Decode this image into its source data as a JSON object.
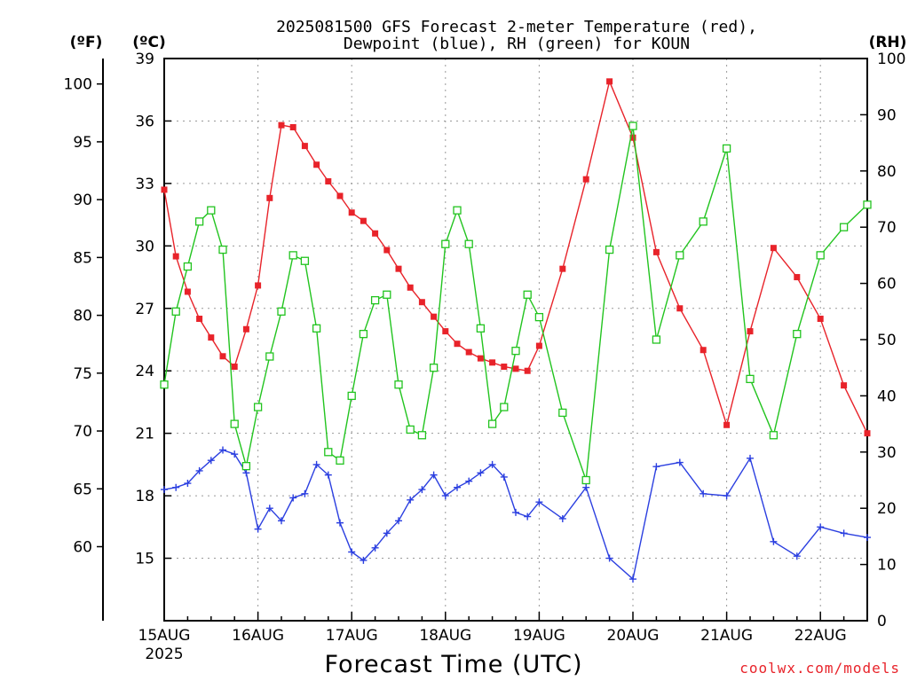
{
  "chart_data": {
    "type": "line",
    "title": "2025081500 GFS Forecast 2-meter Temperature (red),",
    "subtitle": "Dewpoint (blue), RH (green) for KOUN",
    "xlabel": "Forecast Time (UTC)",
    "unit_f": "(ºF)",
    "unit_c": "(ºC)",
    "unit_rh": "(RH)",
    "credit": "coolwx.com/models",
    "x_ticks": [
      "15AUG",
      "16AUG",
      "17AUG",
      "18AUG",
      "19AUG",
      "20AUG",
      "21AUG",
      "22AUG"
    ],
    "x_sub": "2025",
    "xlim_hours": [
      0,
      180
    ],
    "c_ticks": [
      15,
      18,
      21,
      24,
      27,
      30,
      33,
      36,
      39
    ],
    "f_ticks": [
      60,
      65,
      70,
      75,
      80,
      85,
      90,
      95,
      100
    ],
    "rh_ticks": [
      0,
      10,
      20,
      30,
      40,
      50,
      60,
      70,
      80,
      90,
      100
    ],
    "ylim_c": [
      12,
      39
    ],
    "ylim_rh": [
      0,
      100
    ],
    "grid": true,
    "series": [
      {
        "name": "Temperature",
        "axis": "c",
        "color": "#e8232a",
        "marker": "filled-square",
        "x": [
          0,
          3,
          6,
          9,
          12,
          15,
          18,
          21,
          24,
          27,
          30,
          33,
          36,
          39,
          42,
          45,
          48,
          51,
          54,
          57,
          60,
          63,
          66,
          69,
          72,
          75,
          78,
          81,
          84,
          87,
          90,
          93,
          96,
          102,
          108,
          114,
          120,
          126,
          132,
          138,
          144,
          150,
          156,
          162,
          168,
          174,
          180
        ],
        "y": [
          32.7,
          29.5,
          27.8,
          26.5,
          25.6,
          24.7,
          24.2,
          26.0,
          28.1,
          32.3,
          35.8,
          35.7,
          34.8,
          33.9,
          33.1,
          32.4,
          31.6,
          31.2,
          30.6,
          29.8,
          28.9,
          28.0,
          27.3,
          26.6,
          25.9,
          25.3,
          24.9,
          24.6,
          24.4,
          24.2,
          24.1,
          24.0,
          25.2,
          28.9,
          33.2,
          37.9,
          35.2,
          29.7,
          27.0,
          25.0,
          21.4,
          25.9,
          29.9,
          28.5,
          26.5,
          23.3,
          21.0
        ],
        "values_note": ""
      },
      {
        "name": "Dewpoint",
        "axis": "c",
        "color": "#2b3fe0",
        "marker": "plus",
        "x": [
          0,
          3,
          6,
          9,
          12,
          15,
          18,
          21,
          24,
          27,
          30,
          33,
          36,
          39,
          42,
          45,
          48,
          51,
          54,
          57,
          60,
          63,
          66,
          69,
          72,
          75,
          78,
          81,
          84,
          87,
          90,
          93,
          96,
          102,
          108,
          114,
          120,
          126,
          132,
          138,
          144,
          150,
          156,
          162,
          168,
          174,
          180
        ],
        "y": [
          18.3,
          18.4,
          18.6,
          19.2,
          19.7,
          20.2,
          20.0,
          19.1,
          16.4,
          17.4,
          16.8,
          17.9,
          18.1,
          19.5,
          19.0,
          16.7,
          15.3,
          14.9,
          15.5,
          16.2,
          16.8,
          17.8,
          18.3,
          19.0,
          18.0,
          18.4,
          18.7,
          19.1,
          19.5,
          18.9,
          17.2,
          17.0,
          17.7,
          16.9,
          18.4,
          15.0,
          14.0,
          19.4,
          19.6,
          18.1,
          18.0,
          19.8,
          15.8,
          15.1,
          16.5,
          16.2,
          16.0
        ],
        "values_note": ""
      },
      {
        "name": "RH",
        "axis": "rh",
        "color": "#22c41f",
        "marker": "open-square",
        "x": [
          0,
          3,
          6,
          9,
          12,
          15,
          18,
          21,
          24,
          27,
          30,
          33,
          36,
          39,
          42,
          45,
          48,
          51,
          54,
          57,
          60,
          63,
          66,
          69,
          72,
          75,
          78,
          81,
          84,
          87,
          90,
          93,
          96,
          102,
          108,
          114,
          120,
          126,
          132,
          138,
          144,
          150,
          156,
          162,
          168,
          174,
          180
        ],
        "y": [
          42.0,
          55.0,
          63.0,
          71.0,
          73.0,
          66.0,
          35.0,
          27.5,
          38.0,
          47.0,
          55.0,
          65.0,
          64.0,
          52.0,
          30.0,
          28.5,
          40.0,
          51.0,
          57.0,
          58.0,
          42.0,
          34.0,
          33.0,
          45.0,
          67.0,
          73.0,
          67.0,
          52.0,
          35.0,
          38.0,
          48.0,
          58.0,
          54.0,
          37.0,
          25.0,
          66.0,
          88.0,
          50.0,
          65.0,
          71.0,
          84.0,
          43.0,
          33.0,
          51.0,
          65.0,
          70.0,
          74.0
        ],
        "values_note": ""
      }
    ]
  }
}
